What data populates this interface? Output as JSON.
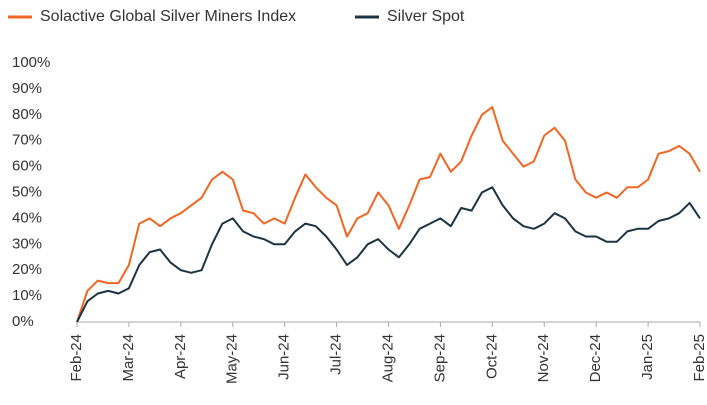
{
  "chart_data": {
    "type": "line",
    "categories": [
      "Feb-24",
      null,
      null,
      null,
      null,
      "Mar-24",
      null,
      null,
      null,
      null,
      "Apr-24",
      null,
      null,
      null,
      null,
      "May-24",
      null,
      null,
      null,
      null,
      "Jun-24",
      null,
      null,
      null,
      null,
      "Jul-24",
      null,
      null,
      null,
      null,
      "Aug-24",
      null,
      null,
      null,
      null,
      "Sep-24",
      null,
      null,
      null,
      null,
      "Oct-24",
      null,
      null,
      null,
      null,
      "Nov-24",
      null,
      null,
      null,
      null,
      "Dec-24",
      null,
      null,
      null,
      null,
      "Jan-25",
      null,
      null,
      null,
      null,
      "Feb-25"
    ],
    "series": [
      {
        "name": "Solactive Global Silver Miners Index",
        "color": "#f26522",
        "values": [
          0,
          12,
          16,
          15,
          15,
          22,
          38,
          40,
          37,
          40,
          42,
          45,
          48,
          55,
          58,
          55,
          43,
          42,
          38,
          40,
          38,
          48,
          57,
          52,
          48,
          45,
          33,
          40,
          42,
          50,
          45,
          36,
          45,
          55,
          56,
          65,
          58,
          62,
          72,
          80,
          83,
          70,
          65,
          60,
          62,
          72,
          75,
          70,
          55,
          50,
          48,
          50,
          48,
          52,
          52,
          55,
          65,
          66,
          68,
          65,
          58
        ]
      },
      {
        "name": "Silver Spot",
        "color": "#1c3341",
        "values": [
          0,
          8,
          11,
          12,
          11,
          13,
          22,
          27,
          28,
          23,
          20,
          19,
          20,
          30,
          38,
          40,
          35,
          33,
          32,
          30,
          30,
          35,
          38,
          37,
          33,
          28,
          22,
          25,
          30,
          32,
          28,
          25,
          30,
          36,
          38,
          40,
          37,
          44,
          43,
          50,
          52,
          45,
          40,
          37,
          36,
          38,
          42,
          40,
          35,
          33,
          33,
          31,
          31,
          35,
          36,
          36,
          39,
          40,
          42,
          46,
          40
        ]
      }
    ],
    "ylim": [
      0,
      100
    ],
    "yticks": [
      {
        "value": 0,
        "label": "0%"
      },
      {
        "value": 10,
        "label": "10%"
      },
      {
        "value": 20,
        "label": "20%"
      },
      {
        "value": 30,
        "label": "30%"
      },
      {
        "value": 40,
        "label": "40%"
      },
      {
        "value": 50,
        "label": "50%"
      },
      {
        "value": 60,
        "label": "60%"
      },
      {
        "value": 70,
        "label": "70%"
      },
      {
        "value": 80,
        "label": "80%"
      },
      {
        "value": 90,
        "label": "90%"
      },
      {
        "value": 100,
        "label": "100%"
      }
    ]
  }
}
